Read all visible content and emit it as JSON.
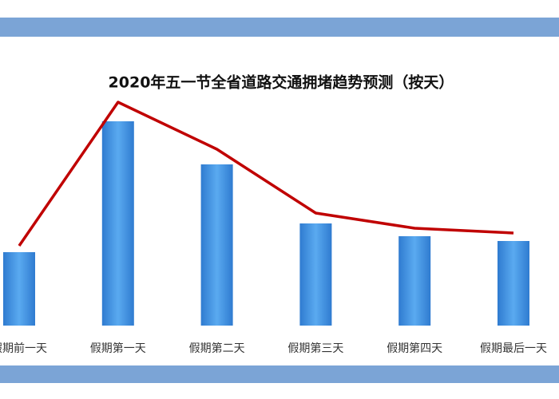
{
  "chart_data": {
    "type": "bar",
    "title": "2020年五一节全省道路交通拥堵趋势预测（按天）",
    "categories": [
      "假期前一天",
      "假期第一天",
      "假期第二天",
      "假期第三天",
      "假期第四天",
      "假期最后一天"
    ],
    "series": [
      {
        "type": "bar",
        "color": "#3f8fde",
        "values": [
          92,
          256,
          202,
          128,
          112,
          106
        ]
      },
      {
        "type": "line",
        "color": "#c00000",
        "values": [
          100,
          280,
          221,
          141,
          122,
          116
        ]
      }
    ],
    "ylim": [
      0,
      300
    ]
  }
}
